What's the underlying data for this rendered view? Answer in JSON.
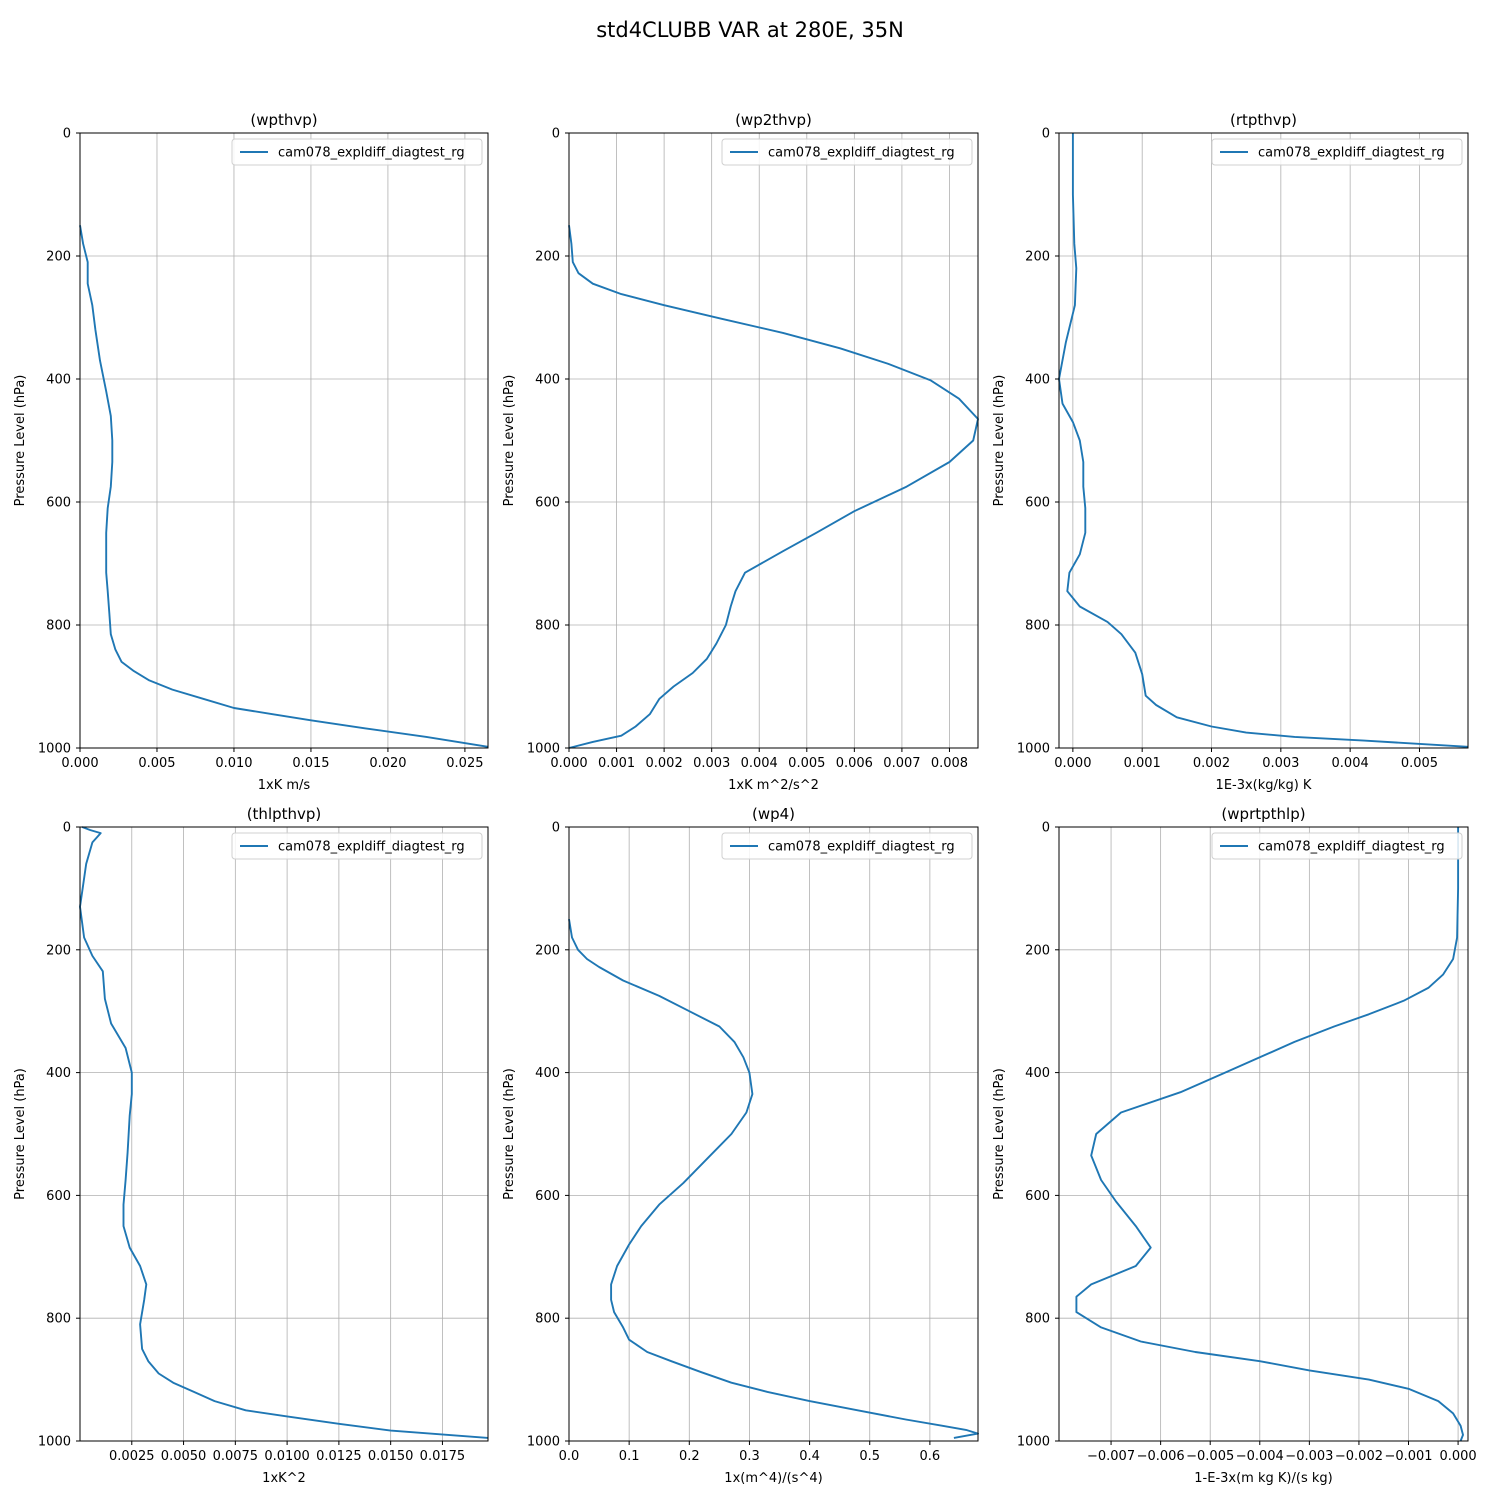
{
  "figure": {
    "title": "std4CLUBB VAR at 280E, 35N"
  },
  "colors": {
    "line": "#1f77b4",
    "grid": "#b0b0b0",
    "axis": "#000000"
  },
  "chart_data": [
    {
      "type": "line",
      "title": "(wpthvp)",
      "xlabel": "1xK m/s",
      "ylabel": "Pressure Level (hPa)",
      "xlim": [
        0,
        0.0265
      ],
      "ylim": [
        1000,
        0
      ],
      "xticks": [
        0,
        0.005,
        0.01,
        0.015,
        0.02,
        0.025
      ],
      "xtick_labels": [
        "0.000",
        "0.005",
        "0.010",
        "0.015",
        "0.020",
        "0.025"
      ],
      "yticks": [
        0,
        200,
        400,
        600,
        800,
        1000
      ],
      "ytick_labels": [
        "0",
        "200",
        "400",
        "600",
        "800",
        "1000"
      ],
      "grid": true,
      "legend_position": "top-right",
      "series": [
        {
          "name": "cam078_expldiff_diagtest_rg",
          "points": [
            [
              0,
              150
            ],
            [
              0.0002,
              180
            ],
            [
              0.0005,
              210
            ],
            [
              0.0005,
              245
            ],
            [
              0.0008,
              280
            ],
            [
              0.001,
              320
            ],
            [
              0.0013,
              370
            ],
            [
              0.0017,
              420
            ],
            [
              0.002,
              460
            ],
            [
              0.0021,
              500
            ],
            [
              0.0021,
              535
            ],
            [
              0.002,
              575
            ],
            [
              0.0018,
              610
            ],
            [
              0.0017,
              650
            ],
            [
              0.0017,
              680
            ],
            [
              0.0017,
              715
            ],
            [
              0.0018,
              745
            ],
            [
              0.0019,
              780
            ],
            [
              0.002,
              815
            ],
            [
              0.0023,
              840
            ],
            [
              0.0027,
              860
            ],
            [
              0.0035,
              875
            ],
            [
              0.0045,
              890
            ],
            [
              0.006,
              905
            ],
            [
              0.008,
              920
            ],
            [
              0.01,
              935
            ],
            [
              0.0125,
              945
            ],
            [
              0.015,
              955
            ],
            [
              0.0185,
              968
            ],
            [
              0.0225,
              982
            ],
            [
              0.0265,
              998
            ]
          ]
        }
      ]
    },
    {
      "type": "line",
      "title": "(wp2thvp)",
      "xlabel": "1xK m^2/s^2",
      "ylabel": "Pressure Level (hPa)",
      "xlim": [
        0,
        0.0086
      ],
      "ylim": [
        1000,
        0
      ],
      "xticks": [
        0,
        0.001,
        0.002,
        0.003,
        0.004,
        0.005,
        0.006,
        0.007,
        0.008
      ],
      "xtick_labels": [
        "0.000",
        "0.001",
        "0.002",
        "0.003",
        "0.004",
        "0.005",
        "0.006",
        "0.007",
        "0.008"
      ],
      "yticks": [
        0,
        200,
        400,
        600,
        800,
        1000
      ],
      "ytick_labels": [
        "0",
        "200",
        "400",
        "600",
        "800",
        "1000"
      ],
      "grid": true,
      "legend_position": "top-right",
      "series": [
        {
          "name": "cam078_expldiff_diagtest_rg",
          "points": [
            [
              0,
              150
            ],
            [
              5e-05,
              180
            ],
            [
              8e-05,
              210
            ],
            [
              0.0002,
              228
            ],
            [
              0.0005,
              245
            ],
            [
              0.0011,
              262
            ],
            [
              0.002,
              280
            ],
            [
              0.0032,
              302
            ],
            [
              0.0045,
              325
            ],
            [
              0.0057,
              350
            ],
            [
              0.0067,
              375
            ],
            [
              0.0076,
              402
            ],
            [
              0.0082,
              432
            ],
            [
              0.0086,
              465
            ],
            [
              0.0085,
              500
            ],
            [
              0.008,
              535
            ],
            [
              0.0071,
              575
            ],
            [
              0.006,
              615
            ],
            [
              0.0052,
              650
            ],
            [
              0.0045,
              680
            ],
            [
              0.0037,
              715
            ],
            [
              0.0035,
              745
            ],
            [
              0.0034,
              770
            ],
            [
              0.0033,
              800
            ],
            [
              0.0031,
              830
            ],
            [
              0.0029,
              855
            ],
            [
              0.0026,
              878
            ],
            [
              0.0022,
              900
            ],
            [
              0.0019,
              920
            ],
            [
              0.0017,
              945
            ],
            [
              0.0014,
              965
            ],
            [
              0.0011,
              980
            ],
            [
              0.0005,
              990
            ],
            [
              0,
              1000
            ]
          ]
        }
      ]
    },
    {
      "type": "line",
      "title": "(rtpthvp)",
      "xlabel": "1E-3x(kg/kg) K",
      "ylabel": "Pressure Level (hPa)",
      "xlim": [
        -0.0002,
        0.0057
      ],
      "ylim": [
        1000,
        0
      ],
      "xticks": [
        0,
        0.001,
        0.002,
        0.003,
        0.004,
        0.005
      ],
      "xtick_labels": [
        "0.000",
        "0.001",
        "0.002",
        "0.003",
        "0.004",
        "0.005"
      ],
      "yticks": [
        0,
        200,
        400,
        600,
        800,
        1000
      ],
      "ytick_labels": [
        "0",
        "200",
        "400",
        "600",
        "800",
        "1000"
      ],
      "grid": true,
      "legend_position": "top-right",
      "series": [
        {
          "name": "cam078_expldiff_diagtest_rg",
          "points": [
            [
              0,
              0
            ],
            [
              0,
              100
            ],
            [
              2e-05,
              180
            ],
            [
              5e-05,
              220
            ],
            [
              3e-05,
              280
            ],
            [
              -0.0001,
              340
            ],
            [
              -0.0002,
              400
            ],
            [
              -0.00015,
              440
            ],
            [
              0,
              470
            ],
            [
              0.0001,
              500
            ],
            [
              0.00015,
              535
            ],
            [
              0.00015,
              575
            ],
            [
              0.00018,
              610
            ],
            [
              0.00018,
              650
            ],
            [
              0.0001,
              685
            ],
            [
              -5e-05,
              715
            ],
            [
              -8e-05,
              745
            ],
            [
              0.0001,
              770
            ],
            [
              0.0005,
              795
            ],
            [
              0.0007,
              815
            ],
            [
              0.0009,
              845
            ],
            [
              0.001,
              880
            ],
            [
              0.00105,
              915
            ],
            [
              0.0012,
              930
            ],
            [
              0.0015,
              950
            ],
            [
              0.002,
              965
            ],
            [
              0.0025,
              975
            ],
            [
              0.0032,
              982
            ],
            [
              0.0042,
              988
            ],
            [
              0.0057,
              998
            ]
          ]
        }
      ]
    },
    {
      "type": "line",
      "title": "(thlpthvp)",
      "xlabel": "1xK^2",
      "ylabel": "Pressure Level (hPa)",
      "xlim": [
        0,
        0.0197
      ],
      "ylim": [
        1000,
        0
      ],
      "xticks": [
        0.0025,
        0.005,
        0.0075,
        0.01,
        0.0125,
        0.015,
        0.0175
      ],
      "xtick_labels": [
        "0.0025",
        "0.0050",
        "0.0075",
        "0.0100",
        "0.0125",
        "0.0150",
        "0.0175"
      ],
      "yticks": [
        0,
        200,
        400,
        600,
        800,
        1000
      ],
      "ytick_labels": [
        "0",
        "200",
        "400",
        "600",
        "800",
        "1000"
      ],
      "grid": true,
      "legend_position": "top-right",
      "series": [
        {
          "name": "cam078_expldiff_diagtest_rg",
          "points": [
            [
              0.0001,
              0
            ],
            [
              0.0005,
              5
            ],
            [
              0.001,
              10
            ],
            [
              0.0006,
              25
            ],
            [
              0.0003,
              60
            ],
            [
              0,
              130
            ],
            [
              0.0002,
              180
            ],
            [
              0.0006,
              210
            ],
            [
              0.0011,
              235
            ],
            [
              0.0012,
              280
            ],
            [
              0.0015,
              320
            ],
            [
              0.0022,
              360
            ],
            [
              0.0025,
              400
            ],
            [
              0.0025,
              435
            ],
            [
              0.0024,
              470
            ],
            [
              0.0023,
              530
            ],
            [
              0.0022,
              575
            ],
            [
              0.0021,
              615
            ],
            [
              0.0021,
              650
            ],
            [
              0.0024,
              685
            ],
            [
              0.0029,
              715
            ],
            [
              0.0032,
              745
            ],
            [
              0.0031,
              770
            ],
            [
              0.0029,
              810
            ],
            [
              0.003,
              850
            ],
            [
              0.0033,
              870
            ],
            [
              0.0038,
              890
            ],
            [
              0.0045,
              905
            ],
            [
              0.0055,
              920
            ],
            [
              0.0065,
              935
            ],
            [
              0.008,
              950
            ],
            [
              0.01,
              960
            ],
            [
              0.0125,
              972
            ],
            [
              0.015,
              983
            ],
            [
              0.0197,
              995
            ]
          ]
        }
      ]
    },
    {
      "type": "line",
      "title": "(wp4)",
      "xlabel": "1x(m^4)/(s^4)",
      "ylabel": "Pressure Level (hPa)",
      "xlim": [
        0,
        0.68
      ],
      "ylim": [
        1000,
        0
      ],
      "xticks": [
        0,
        0.1,
        0.2,
        0.3,
        0.4,
        0.5,
        0.6
      ],
      "xtick_labels": [
        "0.0",
        "0.1",
        "0.2",
        "0.3",
        "0.4",
        "0.5",
        "0.6"
      ],
      "yticks": [
        0,
        200,
        400,
        600,
        800,
        1000
      ],
      "ytick_labels": [
        "0",
        "200",
        "400",
        "600",
        "800",
        "1000"
      ],
      "grid": true,
      "legend_position": "top-right",
      "series": [
        {
          "name": "cam078_expldiff_diagtest_rg",
          "points": [
            [
              0,
              150
            ],
            [
              0.005,
              180
            ],
            [
              0.015,
              200
            ],
            [
              0.03,
              215
            ],
            [
              0.05,
              228
            ],
            [
              0.09,
              250
            ],
            [
              0.15,
              275
            ],
            [
              0.2,
              300
            ],
            [
              0.25,
              325
            ],
            [
              0.275,
              350
            ],
            [
              0.29,
              375
            ],
            [
              0.3,
              400
            ],
            [
              0.305,
              435
            ],
            [
              0.295,
              465
            ],
            [
              0.27,
              500
            ],
            [
              0.23,
              540
            ],
            [
              0.19,
              580
            ],
            [
              0.15,
              615
            ],
            [
              0.12,
              650
            ],
            [
              0.1,
              680
            ],
            [
              0.08,
              715
            ],
            [
              0.07,
              745
            ],
            [
              0.07,
              770
            ],
            [
              0.075,
              790
            ],
            [
              0.09,
              815
            ],
            [
              0.1,
              835
            ],
            [
              0.13,
              855
            ],
            [
              0.17,
              870
            ],
            [
              0.22,
              888
            ],
            [
              0.27,
              905
            ],
            [
              0.33,
              920
            ],
            [
              0.4,
              935
            ],
            [
              0.48,
              950
            ],
            [
              0.56,
              965
            ],
            [
              0.62,
              975
            ],
            [
              0.66,
              982
            ],
            [
              0.68,
              988
            ],
            [
              0.64,
              995
            ]
          ]
        }
      ]
    },
    {
      "type": "line",
      "title": "(wprtpthlp)",
      "xlabel": "1-E-3x(m kg K)/(s kg)",
      "ylabel": "Pressure Level (hPa)",
      "xlim": [
        -0.00805,
        0.0002
      ],
      "ylim": [
        1000,
        0
      ],
      "xticks": [
        -0.007,
        -0.006,
        -0.005,
        -0.004,
        -0.003,
        -0.002,
        -0.001,
        0
      ],
      "xtick_labels": [
        "−0.007",
        "−0.006",
        "−0.005",
        "−0.004",
        "−0.003",
        "−0.002",
        "−0.001",
        "0.000"
      ],
      "yticks": [
        0,
        200,
        400,
        600,
        800,
        1000
      ],
      "ytick_labels": [
        "0",
        "200",
        "400",
        "600",
        "800",
        "1000"
      ],
      "grid": true,
      "legend_position": "top-right",
      "series": [
        {
          "name": "cam078_expldiff_diagtest_rg",
          "points": [
            [
              0,
              0
            ],
            [
              0,
              100
            ],
            [
              -2e-05,
              180
            ],
            [
              -0.0001,
              215
            ],
            [
              -0.0003,
              240
            ],
            [
              -0.0006,
              262
            ],
            [
              -0.0011,
              283
            ],
            [
              -0.0018,
              305
            ],
            [
              -0.0025,
              325
            ],
            [
              -0.0033,
              350
            ],
            [
              -0.004,
              375
            ],
            [
              -0.0047,
              400
            ],
            [
              -0.0056,
              432
            ],
            [
              -0.0068,
              465
            ],
            [
              -0.0073,
              500
            ],
            [
              -0.0074,
              535
            ],
            [
              -0.0072,
              575
            ],
            [
              -0.0069,
              610
            ],
            [
              -0.0065,
              650
            ],
            [
              -0.0062,
              685
            ],
            [
              -0.0065,
              715
            ],
            [
              -0.0074,
              745
            ],
            [
              -0.0077,
              765
            ],
            [
              -0.0077,
              790
            ],
            [
              -0.0072,
              815
            ],
            [
              -0.0064,
              838
            ],
            [
              -0.0053,
              855
            ],
            [
              -0.004,
              870
            ],
            [
              -0.003,
              885
            ],
            [
              -0.0018,
              900
            ],
            [
              -0.001,
              915
            ],
            [
              -0.0004,
              935
            ],
            [
              -0.0001,
              955
            ],
            [
              5e-05,
              975
            ],
            [
              0.0001,
              990
            ],
            [
              5e-05,
              1000
            ]
          ]
        }
      ]
    }
  ]
}
